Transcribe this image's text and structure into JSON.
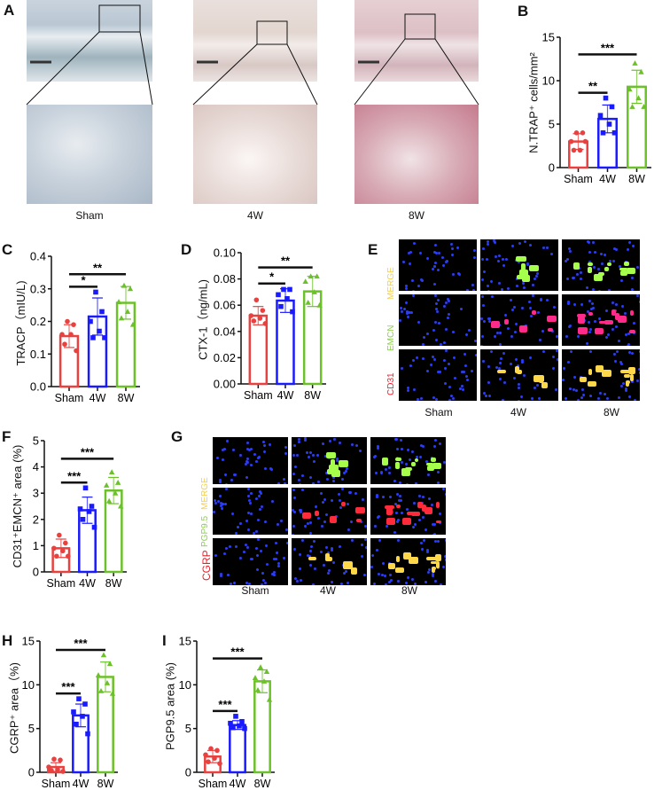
{
  "panels": {
    "A": {
      "letter": "A",
      "groups": [
        "Sham",
        "4W",
        "8W"
      ]
    },
    "E": {
      "letter": "E",
      "channels": [
        "CD31",
        "EMCN",
        "MERGE"
      ],
      "groups": [
        "Sham",
        "4W",
        "8W"
      ]
    },
    "G": {
      "letter": "G",
      "channels": [
        "CGRP",
        "PGP9.5",
        "MERGE"
      ],
      "groups": [
        "Sham",
        "4W",
        "8W"
      ]
    }
  },
  "colors": {
    "Sham": "#e8413f",
    "4W": "#1a1aff",
    "8W": "#6cc12a",
    "CD31": "#e8202a",
    "EMCN": "#8ccf4a",
    "MERGE": "#f5d04a",
    "CGRP": "#e8202a",
    "PGP9.5": "#8ccf4a"
  },
  "chart_data": [
    {
      "panel": "B",
      "type": "bar",
      "categories": [
        "Sham",
        "4W",
        "8W"
      ],
      "ylabel": "N.TRAP⁺ cells/mm²",
      "ylim": [
        0,
        15
      ],
      "yticks": [
        "0",
        "5",
        "10",
        "15"
      ],
      "means": [
        3.0,
        5.6,
        9.3
      ],
      "sd": [
        0.9,
        1.6,
        1.9
      ],
      "points": [
        [
          4,
          4,
          3,
          2,
          2,
          3
        ],
        [
          8,
          7,
          6,
          5,
          4,
          4
        ],
        [
          12,
          11,
          9,
          8,
          7,
          7
        ]
      ],
      "significance": [
        {
          "pair": [
            "Sham",
            "4W"
          ],
          "label": "**"
        },
        {
          "pair": [
            "Sham",
            "8W"
          ],
          "label": "***"
        }
      ]
    },
    {
      "panel": "C",
      "type": "bar",
      "categories": [
        "Sham",
        "4W",
        "8W"
      ],
      "ylabel": "TRACP（mIU/L)",
      "ylim": [
        0,
        0.4
      ],
      "yticks": [
        "0.0",
        "0.1",
        "0.2",
        "0.3",
        "0.4"
      ],
      "means": [
        0.155,
        0.215,
        0.257
      ],
      "sd": [
        0.035,
        0.057,
        0.05
      ],
      "points": [
        [
          0.2,
          0.19,
          0.16,
          0.16,
          0.13,
          0.11
        ],
        [
          0.29,
          0.23,
          0.2,
          0.17,
          0.15,
          0.15
        ],
        [
          0.31,
          0.3,
          0.26,
          0.23,
          0.21,
          0.19
        ]
      ],
      "significance": [
        {
          "pair": [
            "Sham",
            "4W"
          ],
          "label": "*"
        },
        {
          "pair": [
            "Sham",
            "8W"
          ],
          "label": "**"
        }
      ]
    },
    {
      "panel": "D",
      "type": "bar",
      "categories": [
        "Sham",
        "4W",
        "8W"
      ],
      "ylabel": "CTX-1（ng/mL)",
      "ylim": [
        0,
        0.1
      ],
      "yticks": [
        "0.00",
        "0.02",
        "0.04",
        "0.06",
        "0.08",
        "0.10"
      ],
      "means": [
        0.052,
        0.0635,
        0.0705
      ],
      "sd": [
        0.007,
        0.009,
        0.0115
      ],
      "points": [
        [
          0.064,
          0.056,
          0.052,
          0.05,
          0.048,
          0.046
        ],
        [
          0.072,
          0.072,
          0.068,
          0.065,
          0.059,
          0.055
        ],
        [
          0.082,
          0.082,
          0.078,
          0.07,
          0.062,
          0.06
        ]
      ],
      "significance": [
        {
          "pair": [
            "Sham",
            "4W"
          ],
          "label": "*"
        },
        {
          "pair": [
            "Sham",
            "8W"
          ],
          "label": "**"
        }
      ]
    },
    {
      "panel": "F",
      "type": "bar",
      "categories": [
        "Sham",
        "4W",
        "8W"
      ],
      "ylabel": "CD31⁺EMCN⁺ area (%)",
      "ylim": [
        0,
        5
      ],
      "yticks": [
        "0",
        "1",
        "2",
        "3",
        "4",
        "5"
      ],
      "means": [
        0.9,
        2.35,
        3.1
      ],
      "sd": [
        0.35,
        0.5,
        0.5
      ],
      "points": [
        [
          1.4,
          1.1,
          0.9,
          0.8,
          0.6,
          0.6
        ],
        [
          3.2,
          2.5,
          2.4,
          2.3,
          2.0,
          1.7
        ],
        [
          3.8,
          3.4,
          3.3,
          3.0,
          2.7,
          2.5
        ]
      ],
      "significance": [
        {
          "pair": [
            "Sham",
            "4W"
          ],
          "label": "***"
        },
        {
          "pair": [
            "Sham",
            "8W"
          ],
          "label": "***"
        }
      ]
    },
    {
      "panel": "H",
      "type": "bar",
      "categories": [
        "Sham",
        "4W",
        "8W"
      ],
      "ylabel": "CGRP⁺ area（%)",
      "ylim": [
        0,
        15
      ],
      "yticks": [
        "0",
        "5",
        "10",
        "15"
      ],
      "means": [
        0.6,
        6.5,
        10.9
      ],
      "sd": [
        0.5,
        1.3,
        1.7
      ],
      "points": [
        [
          1.5,
          1.4,
          0.6,
          0.3,
          0.2,
          0.1
        ],
        [
          8.4,
          7.8,
          6.9,
          6.4,
          5.5,
          4.4
        ],
        [
          13.4,
          12.4,
          11.1,
          10.2,
          9.3,
          9.0
        ]
      ],
      "significance": [
        {
          "pair": [
            "Sham",
            "4W"
          ],
          "label": "***"
        },
        {
          "pair": [
            "Sham",
            "8W"
          ],
          "label": "***"
        }
      ]
    },
    {
      "panel": "I",
      "type": "bar",
      "categories": [
        "Sham",
        "4W",
        "8W"
      ],
      "ylabel": "PGP9.5 area (%)",
      "ylim": [
        0,
        15
      ],
      "yticks": [
        "0",
        "5",
        "10",
        "15"
      ],
      "means": [
        1.8,
        5.4,
        10.4
      ],
      "sd": [
        0.7,
        0.5,
        1.3
      ],
      "points": [
        [
          2.7,
          2.5,
          2.0,
          1.6,
          1.2,
          1.0
        ],
        [
          6.4,
          5.8,
          5.6,
          5.3,
          5.1,
          5.0
        ],
        [
          12.0,
          11.5,
          10.8,
          10.4,
          9.4,
          8.3
        ]
      ],
      "significance": [
        {
          "pair": [
            "Sham",
            "4W"
          ],
          "label": "***"
        },
        {
          "pair": [
            "Sham",
            "8W"
          ],
          "label": "***"
        }
      ]
    }
  ]
}
